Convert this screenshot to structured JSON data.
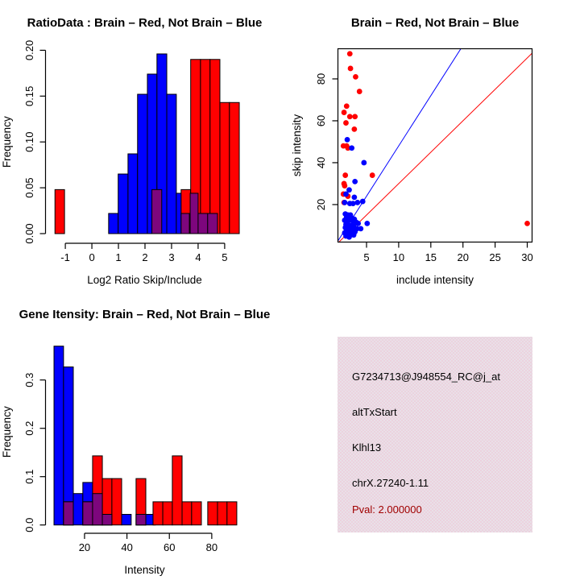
{
  "colors": {
    "red": "#ff0000",
    "blue": "#0000ff",
    "purple": "#7d067d",
    "axis": "#000000",
    "pval_text": "#a00000",
    "info_dot": "#f4a9be",
    "info_base": "#e9e0e8"
  },
  "chart_data": [
    {
      "type": "bar",
      "panel": "top-left",
      "title": "RatioData : Brain – Red, Not Brain – Blue",
      "xlabel": "Log2 Ratio Skip/Include",
      "ylabel": "Frequency",
      "xlim": [
        -1.67,
        5.64
      ],
      "ylim": [
        0,
        0.2
      ],
      "xticks": [
        -1,
        0,
        1,
        2,
        3,
        4,
        5
      ],
      "xtick_labels": [
        "-1",
        "0",
        "1",
        "2",
        "3",
        "4",
        "5"
      ],
      "yticks": [
        0,
        0.05,
        0.1,
        0.15,
        0.2
      ],
      "ytick_labels": [
        "0.00",
        "0.05",
        "0.10",
        "0.15",
        "0.20"
      ],
      "grid": false,
      "legend": "none",
      "series": [
        {
          "name": "not-brain-blue",
          "color": "blue",
          "bars": [
            [
              0.63,
              0.99,
              0.022
            ],
            [
              0.99,
              1.36,
              0.065
            ],
            [
              1.36,
              1.72,
              0.087
            ],
            [
              1.72,
              2.09,
              0.152
            ],
            [
              2.09,
              2.45,
              0.174
            ],
            [
              2.45,
              2.82,
              0.196
            ],
            [
              2.82,
              3.18,
              0.152
            ],
            [
              3.18,
              3.55,
              0.044
            ]
          ]
        },
        {
          "name": "brain-red",
          "color": "red",
          "bars": [
            [
              -1.39,
              -1.03,
              0.048
            ],
            [
              3.36,
              3.72,
              0.048
            ],
            [
              3.72,
              4.09,
              0.19
            ],
            [
              4.09,
              4.45,
              0.19
            ],
            [
              4.45,
              4.82,
              0.19
            ],
            [
              4.82,
              5.18,
              0.143
            ],
            [
              5.18,
              5.55,
              0.143
            ]
          ]
        },
        {
          "name": "overlap-purple",
          "color": "purple",
          "bars": [
            [
              2.26,
              2.63,
              0.048
            ],
            [
              3.36,
              3.67,
              0.022
            ],
            [
              3.7,
              4.0,
              0.044
            ],
            [
              4.0,
              4.36,
              0.022
            ],
            [
              4.36,
              4.73,
              0.022
            ]
          ]
        }
      ]
    },
    {
      "type": "scatter",
      "panel": "top-right",
      "title": "Brain – Red, Not Brain – Blue",
      "xlabel": "include intensity",
      "ylabel": "skip intensity",
      "xlim": [
        0.55,
        30.75
      ],
      "ylim": [
        2.1,
        94.4
      ],
      "xticks": [
        5,
        10,
        15,
        20,
        25,
        30
      ],
      "yticks": [
        20,
        40,
        60,
        80
      ],
      "grid": false,
      "legend": "none",
      "lines": [
        {
          "name": "blue-threshold-line",
          "color": "blue",
          "slope": 4.8,
          "intercept": 0
        },
        {
          "name": "red-threshold-line",
          "color": "red",
          "slope": 3.0,
          "intercept": 0
        }
      ],
      "series": [
        {
          "name": "brain-red",
          "color": "red",
          "points": [
            [
              2.4,
              92
            ],
            [
              2.5,
              85
            ],
            [
              3.3,
              81
            ],
            [
              3.9,
              74
            ],
            [
              1.9,
              67
            ],
            [
              1.5,
              64
            ],
            [
              2.4,
              62
            ],
            [
              3.2,
              62
            ],
            [
              1.8,
              59
            ],
            [
              3.1,
              56
            ],
            [
              1.4,
              48
            ],
            [
              1.9,
              48
            ],
            [
              2.1,
              47
            ],
            [
              1.7,
              34
            ],
            [
              5.9,
              34
            ],
            [
              1.5,
              30
            ],
            [
              1.6,
              29
            ],
            [
              1.4,
              25
            ],
            [
              2.1,
              24
            ],
            [
              1.5,
              21
            ],
            [
              30,
              11
            ]
          ]
        },
        {
          "name": "not-brain-blue",
          "color": "blue",
          "points": [
            [
              2.0,
              51
            ],
            [
              2.7,
              47
            ],
            [
              4.6,
              40
            ],
            [
              3.2,
              31
            ],
            [
              2.3,
              27
            ],
            [
              1.8,
              25
            ],
            [
              3.1,
              23.5
            ],
            [
              4.4,
              21.5
            ],
            [
              3.6,
              21
            ],
            [
              1.6,
              21
            ],
            [
              2.4,
              20.5
            ],
            [
              2.9,
              20.5
            ],
            [
              1.7,
              15.5
            ],
            [
              2.1,
              15
            ],
            [
              2.5,
              15
            ],
            [
              1.9,
              14
            ],
            [
              2.3,
              13.5
            ],
            [
              2.7,
              13.5
            ],
            [
              3.1,
              13
            ],
            [
              1.6,
              12.5
            ],
            [
              2.1,
              12
            ],
            [
              2.9,
              12
            ],
            [
              3.4,
              11.5
            ],
            [
              5.1,
              11
            ],
            [
              3.7,
              11
            ],
            [
              1.8,
              10.5
            ],
            [
              2.2,
              10
            ],
            [
              2.6,
              10
            ],
            [
              3.0,
              9.5
            ],
            [
              1.7,
              9
            ],
            [
              2.4,
              8.5
            ],
            [
              2.9,
              8.5
            ],
            [
              3.5,
              8.5
            ],
            [
              4.1,
              8.5
            ],
            [
              1.9,
              7.5
            ],
            [
              2.3,
              7
            ],
            [
              2.8,
              7
            ],
            [
              3.2,
              7
            ],
            [
              1.6,
              6.5
            ],
            [
              2.1,
              6
            ],
            [
              2.6,
              6
            ],
            [
              3.0,
              5.5
            ],
            [
              1.8,
              5
            ],
            [
              2.3,
              4.5
            ]
          ]
        }
      ]
    },
    {
      "type": "bar",
      "panel": "bottom-left",
      "title": "Gene Itensity: Brain – Red, Not Brain – Blue",
      "xlabel": "Intensity",
      "ylabel": "Frequency",
      "xlim": [
        2.55,
        94.1
      ],
      "ylim": [
        0,
        0.385
      ],
      "xticks": [
        20,
        40,
        60,
        80
      ],
      "xtick_labels": [
        "20",
        "40",
        "60",
        "80"
      ],
      "yticks": [
        0,
        0.1,
        0.2,
        0.3
      ],
      "ytick_labels": [
        "0.0",
        "0.1",
        "0.2",
        "0.3"
      ],
      "grid": false,
      "legend": "none",
      "series": [
        {
          "name": "not-brain-blue",
          "color": "blue",
          "bars": [
            [
              5.6,
              10.1,
              0.37
            ],
            [
              10.1,
              14.7,
              0.327
            ],
            [
              14.7,
              19.2,
              0.065
            ],
            [
              19.2,
              23.8,
              0.088
            ],
            [
              23.8,
              28.4,
              0.065
            ],
            [
              28.4,
              32.9,
              0.022
            ],
            [
              37.5,
              42.0,
              0.022
            ],
            [
              44.3,
              48.9,
              0.022
            ],
            [
              48.9,
              53.4,
              0.022
            ]
          ]
        },
        {
          "name": "brain-red",
          "color": "red",
          "bars": [
            [
              10.1,
              14.7,
              0.048
            ],
            [
              19.2,
              23.8,
              0.048
            ],
            [
              23.8,
              28.4,
              0.143
            ],
            [
              28.4,
              32.9,
              0.096
            ],
            [
              32.9,
              37.5,
              0.096
            ],
            [
              44.3,
              48.9,
              0.096
            ],
            [
              52.3,
              56.9,
              0.048
            ],
            [
              56.9,
              61.4,
              0.048
            ],
            [
              61.4,
              66.0,
              0.143
            ],
            [
              66.0,
              70.5,
              0.048
            ],
            [
              70.5,
              75.1,
              0.048
            ],
            [
              78.1,
              82.7,
              0.048
            ],
            [
              82.7,
              87.2,
              0.048
            ],
            [
              87.2,
              91.8,
              0.048
            ]
          ]
        },
        {
          "name": "overlap-purple",
          "color": "purple",
          "bars": [
            [
              10.1,
              14.7,
              0.048
            ],
            [
              19.2,
              23.8,
              0.048
            ],
            [
              23.8,
              28.4,
              0.065
            ],
            [
              28.4,
              32.9,
              0.022
            ],
            [
              44.3,
              48.9,
              0.022
            ]
          ]
        }
      ]
    }
  ],
  "info_panel": {
    "lines": [
      "G7234713@J948554_RC@j_at",
      "altTxStart",
      "Klhl13",
      "chrX.27240-1.11"
    ],
    "pval": "Pval: 2.000000"
  }
}
